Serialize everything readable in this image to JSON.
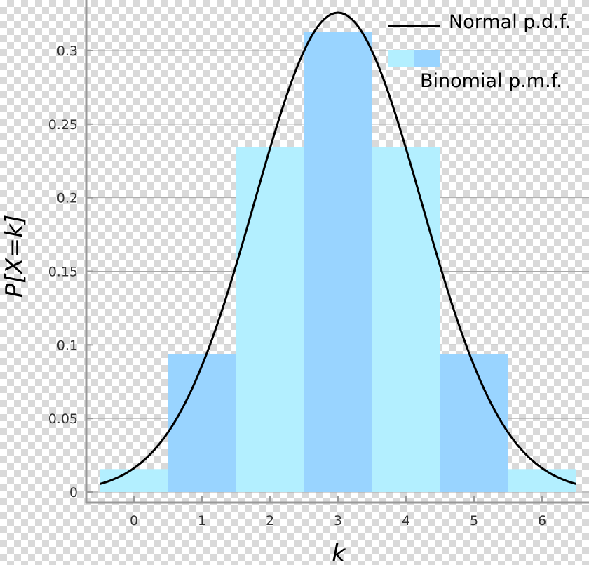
{
  "chart_data": {
    "type": "bar",
    "xlabel": "k",
    "ylabel": "P[X=k]",
    "categories": [
      "0",
      "1",
      "2",
      "3",
      "4",
      "5",
      "6"
    ],
    "x": [
      0,
      1,
      2,
      3,
      4,
      5,
      6
    ],
    "series": [
      {
        "name": "Binomial p.m.f.",
        "values": [
          0.0156,
          0.0938,
          0.2344,
          0.3125,
          0.2344,
          0.0938,
          0.0156
        ],
        "colors": [
          "#b3efff",
          "#99d4ff",
          "#b3efff",
          "#99d4ff",
          "#b3efff",
          "#99d4ff",
          "#b3efff"
        ]
      },
      {
        "name": "Normal p.d.f.",
        "kind": "line",
        "mean": 3,
        "sd": 1.2247,
        "color": "#000000"
      }
    ],
    "xlim": [
      -0.7,
      6.7
    ],
    "ylim": [
      0,
      0.33
    ],
    "xticks": [
      "0",
      "1",
      "2",
      "3",
      "4",
      "5",
      "6"
    ],
    "yticks": [
      "0",
      "0.05",
      "0.1",
      "0.15",
      "0.2",
      "0.25",
      "0.3"
    ],
    "ytick_values": [
      0,
      0.05,
      0.1,
      0.15,
      0.2,
      0.25,
      0.3
    ],
    "grid": true,
    "legend": "top-right"
  }
}
